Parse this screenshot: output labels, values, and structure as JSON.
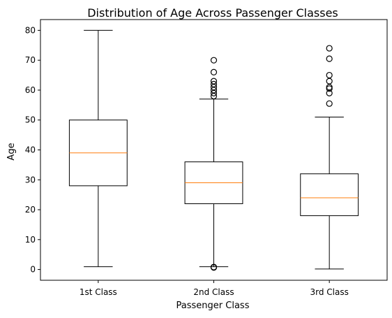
{
  "chart_data": {
    "type": "boxplot",
    "title": "Distribution of Age Across Passenger Classes",
    "xlabel": "Passenger Class",
    "ylabel": "Age",
    "ylim": [
      -3.6,
      83.6
    ],
    "yticks": [
      0,
      10,
      20,
      30,
      40,
      50,
      60,
      70,
      80
    ],
    "grid": false,
    "categories": [
      "1st Class",
      "2nd Class",
      "3rd Class"
    ],
    "boxes": [
      {
        "whisker_low": 0.92,
        "q1": 28,
        "median": 39,
        "q3": 50,
        "whisker_high": 80,
        "outliers": []
      },
      {
        "whisker_low": 0.92,
        "q1": 22,
        "median": 29,
        "q3": 36,
        "whisker_high": 57,
        "outliers": [
          0.67,
          0.83,
          58,
          59,
          60,
          61,
          62,
          63,
          66,
          70
        ]
      },
      {
        "whisker_low": 0.17,
        "q1": 18,
        "median": 24,
        "q3": 32,
        "whisker_high": 51,
        "outliers": [
          55.5,
          59,
          60.5,
          61,
          63,
          65,
          70.5,
          74
        ]
      }
    ],
    "colors": {
      "box": "#000000",
      "median": "#ff7f0e",
      "frame": "#000000"
    }
  }
}
